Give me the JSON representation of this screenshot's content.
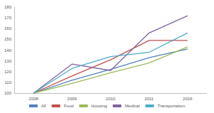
{
  "chart_data": {
    "type": "line",
    "categories": [
      "2008",
      "2009",
      "2010",
      "2011",
      "2016"
    ],
    "series": [
      {
        "name": "All",
        "color": "#4f81bd",
        "values": [
          100,
          112,
          122,
          133,
          141
        ]
      },
      {
        "name": "Food",
        "color": "#c0504d",
        "values": [
          100,
          116,
          131,
          149,
          149
        ]
      },
      {
        "name": "Housing",
        "color": "#9bbb59",
        "values": [
          100,
          109,
          119,
          128,
          143
        ]
      },
      {
        "name": "Medical",
        "color": "#8064a2",
        "values": [
          100,
          127,
          121,
          156,
          172
        ]
      },
      {
        "name": "Transportation",
        "color": "#4bacc6",
        "values": [
          100,
          123,
          134,
          138,
          156
        ]
      }
    ],
    "ylim": [
      100,
      180
    ],
    "yticks": [
      100,
      110,
      120,
      130,
      140,
      150,
      160,
      170,
      180
    ],
    "grid": false,
    "legend": "bottom"
  }
}
